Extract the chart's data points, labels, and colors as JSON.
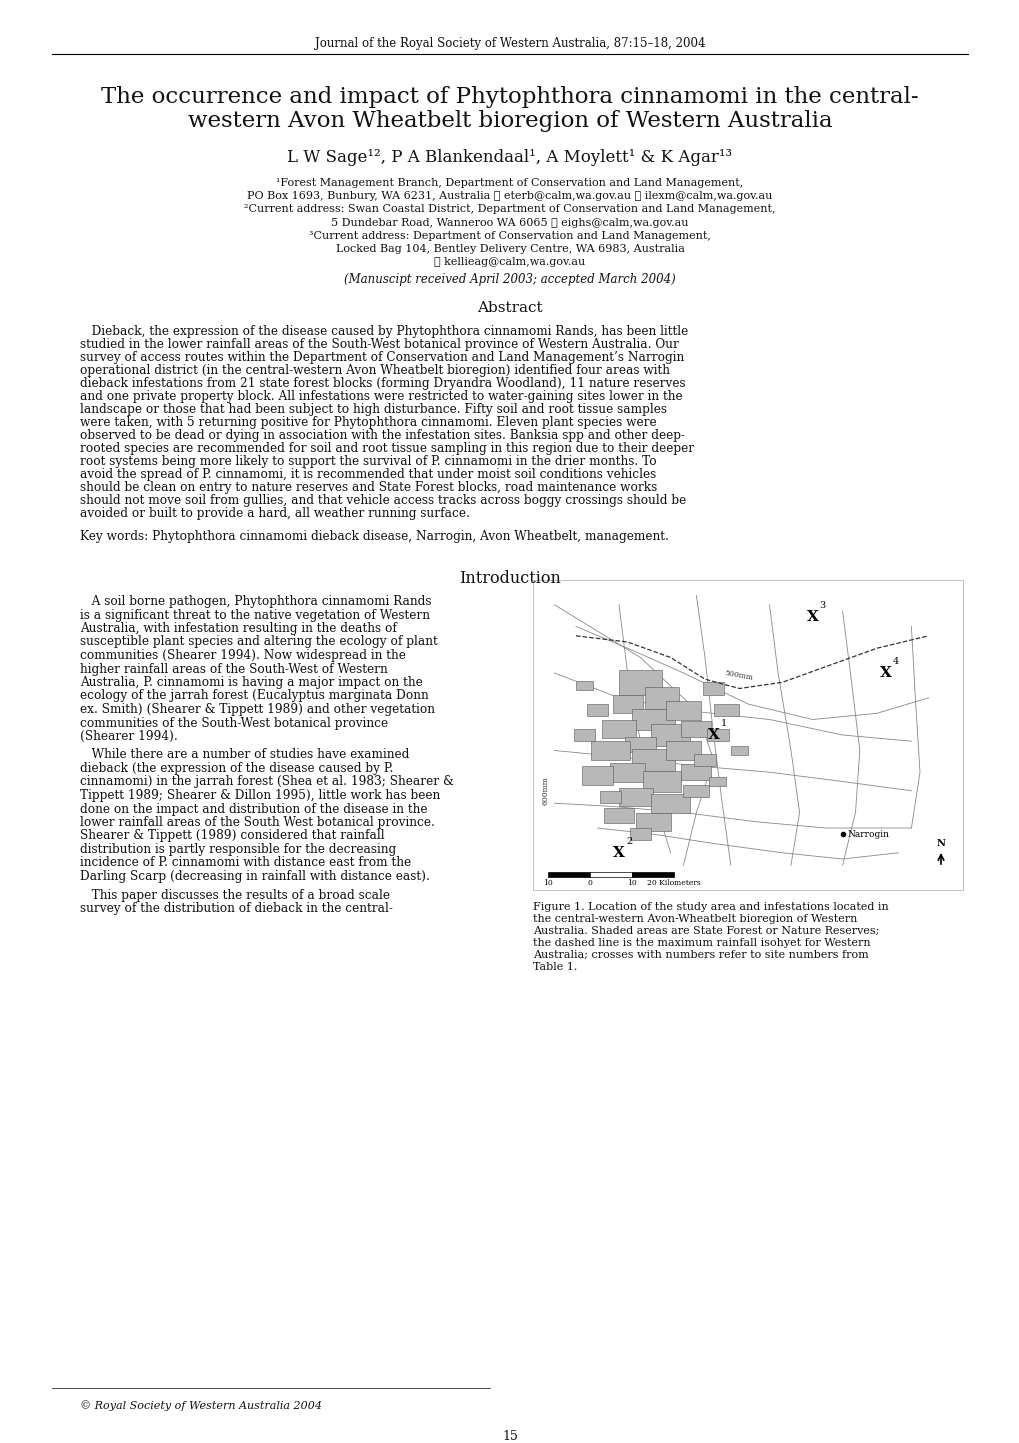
{
  "journal_header": "Journal of the Royal Society of Western Australia, 87:15–18, 2004",
  "title_line1": "The occurrence and impact of Phytophthora cinnamomi in the central-",
  "title_line2": "western Avon Wheatbelt bioregion of Western Australia",
  "authors": "L W Sage¹², P A Blankendaal¹, A Moylett¹ & K Agar¹³",
  "affil1": "¹Forest Management Branch, Department of Conservation and Land Management,",
  "affil2": "PO Box 1693, Bunbury, WA 6231, Australia ✉ eterb@calm,wa.gov.au ✉ ilexm@calm,wa.gov.au",
  "affil3": "²Current address: Swan Coastal District, Department of Conservation and Land Management,",
  "affil4": "5 Dundebar Road, Wanneroo WA 6065 ✉ eighs@calm,wa.gov.au",
  "affil5": "³Current address: Department of Conservation and Land Management,",
  "affil6": "Locked Bag 104, Bentley Delivery Centre, WA 6983, Australia",
  "affil7": "✉ kellieag@calm,wa.gov.au",
  "manuscript": "(Manuscipt received April 2003; accepted March 2004)",
  "abstract_title": "Abstract",
  "abstract_lines": [
    "   Dieback, the expression of the disease caused by Phytophthora cinnamomi Rands, has been little",
    "studied in the lower rainfall areas of the South-West botanical province of Western Australia. Our",
    "survey of access routes within the Department of Conservation and Land Management’s Narrogin",
    "operational district (in the central-western Avon Wheatbelt bioregion) identified four areas with",
    "dieback infestations from 21 state forest blocks (forming Dryandra Woodland), 11 nature reserves",
    "and one private property block. All infestations were restricted to water-gaining sites lower in the",
    "landscape or those that had been subject to high disturbance. Fifty soil and root tissue samples",
    "were taken, with 5 returning positive for Phytophthora cinnamomi. Eleven plant species were",
    "observed to be dead or dying in association with the infestation sites. Banksia spp and other deep-",
    "rooted species are recommended for soil and root tissue sampling in this region due to their deeper",
    "root systems being more likely to support the survival of P. cinnamomi in the drier months. To",
    "avoid the spread of P. cinnamomi, it is recommended that under moist soil conditions vehicles",
    "should be clean on entry to nature reserves and State Forest blocks, road maintenance works",
    "should not move soil from gullies, and that vehicle access tracks across boggy crossings should be",
    "avoided or built to provide a hard, all weather running surface."
  ],
  "keywords": "Key words: Phytophthora cinnamomi dieback disease, Narrogin, Avon Wheatbelt, management.",
  "intro_title": "Introduction",
  "intro_lines_p1": [
    "   A soil borne pathogen, Phytophthora cinnamomi Rands",
    "is a significant threat to the native vegetation of Western",
    "Australia, with infestation resulting in the deaths of",
    "susceptible plant species and altering the ecology of plant",
    "communities (Shearer 1994). Now widespread in the",
    "higher rainfall areas of the South-West of Western",
    "Australia, P. cinnamomi is having a major impact on the",
    "ecology of the jarrah forest (Eucalyptus marginata Donn",
    "ex. Smith) (Shearer & Tippett 1989) and other vegetation",
    "communities of the South-West botanical province",
    "(Shearer 1994)."
  ],
  "intro_lines_p2": [
    "   While there are a number of studies have examined",
    "dieback (the expression of the disease caused by P.",
    "cinnamomi) in the jarrah forest (Shea et al. 1983; Shearer &",
    "Tippett 1989; Shearer & Dillon 1995), little work has been",
    "done on the impact and distribution of the disease in the",
    "lower rainfall areas of the South West botanical province.",
    "Shearer & Tippett (1989) considered that rainfall",
    "distribution is partly responsible for the decreasing",
    "incidence of P. cinnamomi with distance east from the",
    "Darling Scarp (decreasing in rainfall with distance east)."
  ],
  "intro_lines_p3": [
    "   This paper discusses the results of a broad scale",
    "survey of the distribution of dieback in the central-"
  ],
  "figure_caption_lines": [
    "Figure 1. Location of the study area and infestations located in",
    "the central-western Avon-Wheatbelt bioregion of Western",
    "Australia. Shaded areas are State Forest or Nature Reserves;",
    "the dashed line is the maximum rainfall isohyet for Western",
    "Australia; crosses with numbers refer to site numbers from",
    "Table 1."
  ],
  "footer_copyright": "© Royal Society of Western Australia 2004",
  "footer_page": "15",
  "bg": "#ffffff"
}
